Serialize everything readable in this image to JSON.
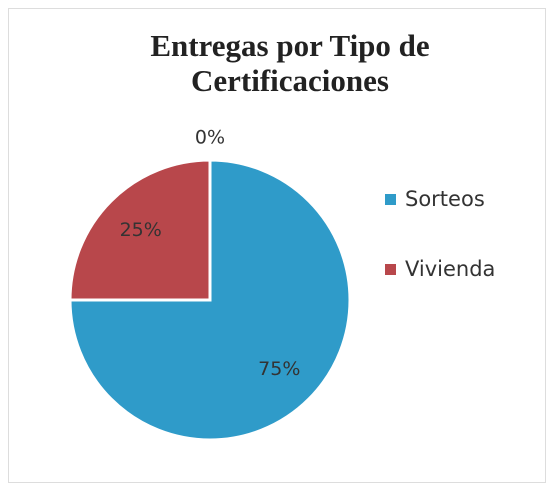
{
  "chart_data": {
    "type": "pie",
    "title": "Entregas por Tipo de Certificaciones",
    "categories": [
      "Sorteos",
      "Vivienda",
      null
    ],
    "values": [
      75,
      25,
      0
    ],
    "value_labels": [
      "75%",
      "25%",
      "0%"
    ],
    "colors": [
      "#2f9bc9",
      "#b8474b",
      "#8aa64a"
    ],
    "legend": "right"
  }
}
